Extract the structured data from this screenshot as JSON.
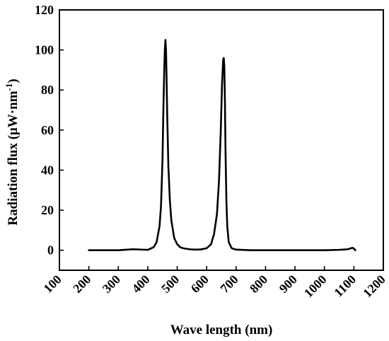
{
  "chart_data": {
    "type": "line",
    "title": "",
    "xlabel": "Wave length (nm)",
    "ylabel": "Radiation flux (μW·nm",
    "ylabel_superscript": "-1",
    "ylabel_suffix": ")",
    "xlim": [
      100,
      1200
    ],
    "ylim": [
      -10,
      120
    ],
    "xticks": [
      100,
      200,
      300,
      400,
      500,
      600,
      700,
      800,
      900,
      1000,
      1100,
      1200
    ],
    "yticks": [
      0,
      20,
      40,
      60,
      80,
      100,
      120
    ],
    "grid": false,
    "legend": "none",
    "line_color": "#000000",
    "series": [
      {
        "x": [
          200,
          300,
          350,
          400,
          420,
          430,
          440,
          445,
          450,
          453,
          456,
          458,
          460,
          462,
          464,
          466,
          470,
          475,
          480,
          490,
          500,
          510,
          520,
          540,
          560,
          580,
          600,
          615,
          625,
          635,
          642,
          648,
          652,
          656,
          658,
          660,
          662,
          664,
          667,
          670,
          675,
          685,
          700,
          750,
          800,
          900,
          1000,
          1050,
          1080,
          1090,
          1095,
          1100,
          1105
        ],
        "y": [
          0,
          0,
          0.5,
          0.2,
          1.5,
          4,
          12,
          22,
          45,
          70,
          90,
          100,
          105,
          100,
          85,
          68,
          42,
          25,
          15,
          6,
          3,
          1.5,
          1,
          0.5,
          0.3,
          0.4,
          1,
          3,
          8,
          18,
          35,
          60,
          82,
          95,
          96,
          92,
          75,
          50,
          25,
          12,
          4,
          1,
          0.3,
          0,
          0,
          0,
          0,
          0.2,
          0.5,
          1,
          1.2,
          0.8,
          0
        ]
      }
    ]
  }
}
